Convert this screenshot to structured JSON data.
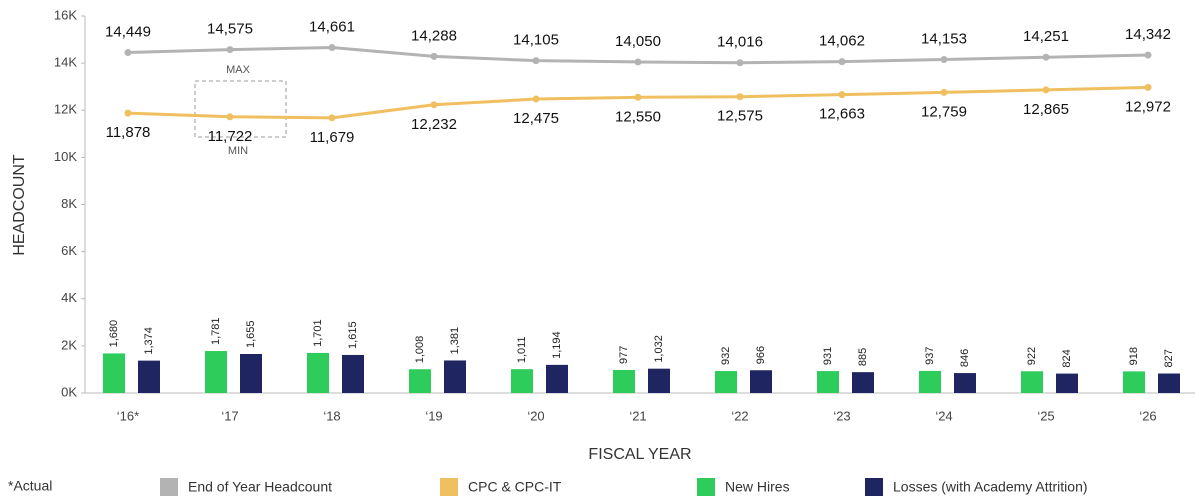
{
  "chart_data": {
    "type": "bar_line",
    "y_label": "HEADCOUNT",
    "x_label": "FISCAL YEAR",
    "annotations": [
      "MAX",
      "MIN"
    ],
    "footnote": "*Actual",
    "categories": [
      "‘16*",
      "‘17",
      "‘18",
      "‘19",
      "‘20",
      "‘21",
      "‘22",
      "‘23",
      "‘24",
      "‘25",
      "‘26"
    ],
    "ylim": [
      0,
      16000
    ],
    "yticks": [
      {
        "value": 0,
        "label": "0K"
      },
      {
        "value": 2000,
        "label": "2K"
      },
      {
        "value": 4000,
        "label": "4K"
      },
      {
        "value": 6000,
        "label": "6K"
      },
      {
        "value": 8000,
        "label": "8K"
      },
      {
        "value": 10000,
        "label": "10K"
      },
      {
        "value": 12000,
        "label": "12K"
      },
      {
        "value": 14000,
        "label": "14K"
      },
      {
        "value": 16000,
        "label": "16K"
      }
    ],
    "grid": false,
    "series": [
      {
        "name": "End of Year Headcount",
        "kind": "line",
        "label_side": "above",
        "color": "#b3b3b3",
        "values": [
          14449,
          14575,
          14661,
          14288,
          14105,
          14050,
          14016,
          14062,
          14153,
          14251,
          14342
        ],
        "value_labels": [
          "14,449",
          "14,575",
          "14,661",
          "14,288",
          "14,105",
          "14,050",
          "14,016",
          "14,062",
          "14,153",
          "14,251",
          "14,342"
        ]
      },
      {
        "name": "CPC & CPC-IT",
        "kind": "line",
        "label_side": "below",
        "color": "#f0c060",
        "values": [
          11878,
          11722,
          11679,
          12232,
          12475,
          12550,
          12575,
          12663,
          12759,
          12865,
          12972
        ],
        "value_labels": [
          "11,878",
          "11,722",
          "11,679",
          "12,232",
          "12,475",
          "12,550",
          "12,575",
          "12,663",
          "12,759",
          "12,865",
          "12,972"
        ]
      },
      {
        "name": "New Hires",
        "kind": "bar",
        "color": "#2ecc5a",
        "values": [
          1680,
          1781,
          1701,
          1008,
          1011,
          977,
          932,
          931,
          937,
          922,
          918
        ],
        "value_labels": [
          "1,680",
          "1,781",
          "1,701",
          "1,008",
          "1,011",
          "977",
          "932",
          "931",
          "937",
          "922",
          "918"
        ]
      },
      {
        "name": "Losses (with Academy Attrition)",
        "kind": "bar",
        "color": "#1f2560",
        "values": [
          1374,
          1655,
          1615,
          1381,
          1194,
          1032,
          966,
          885,
          846,
          824,
          827
        ],
        "value_labels": [
          "1,374",
          "1,655",
          "1,615",
          "1,381",
          "1,194",
          "1,032",
          "966",
          "885",
          "846",
          "824",
          "827"
        ]
      }
    ]
  }
}
